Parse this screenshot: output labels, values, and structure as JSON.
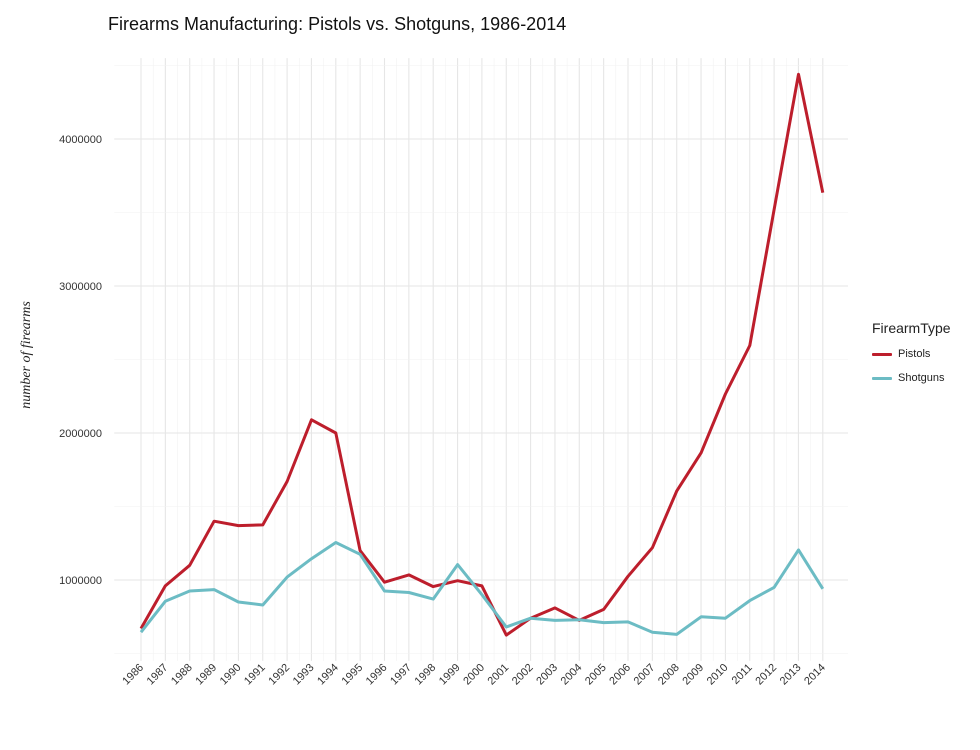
{
  "chart_data": {
    "type": "line",
    "title": "Firearms Manufacturing: Pistols vs. Shotguns, 1986-2014",
    "xlabel": "",
    "ylabel": "number of firearms",
    "x": [
      1986,
      1987,
      1988,
      1989,
      1990,
      1991,
      1992,
      1993,
      1994,
      1995,
      1996,
      1997,
      1998,
      1999,
      2000,
      2001,
      2002,
      2003,
      2004,
      2005,
      2006,
      2007,
      2008,
      2009,
      2010,
      2011,
      2012,
      2013,
      2014
    ],
    "ylim": [
      450000,
      4550000
    ],
    "y_ticks": [
      1000000,
      2000000,
      3000000,
      4000000
    ],
    "y_tick_labels": [
      "1000000",
      "2000000",
      "3000000",
      "4000000"
    ],
    "grid": true,
    "legend": {
      "title": "FirearmType",
      "position": "right"
    },
    "series": [
      {
        "name": "Pistols",
        "color": "#BD1E2C",
        "values": [
          670000,
          960000,
          1100000,
          1400000,
          1370000,
          1375000,
          1670000,
          2090000,
          2000000,
          1200000,
          985000,
          1035000,
          955000,
          995000,
          960000,
          625000,
          740000,
          810000,
          725000,
          800000,
          1025000,
          1220000,
          1605000,
          1865000,
          2265000,
          2595000,
          3520000,
          4440000,
          3635000
        ]
      },
      {
        "name": "Shotguns",
        "color": "#6CBCC4",
        "values": [
          645000,
          855000,
          925000,
          935000,
          850000,
          830000,
          1020000,
          1145000,
          1255000,
          1175000,
          925000,
          915000,
          870000,
          1105000,
          900000,
          680000,
          740000,
          725000,
          730000,
          710000,
          715000,
          645000,
          630000,
          750000,
          740000,
          860000,
          950000,
          1205000,
          940000
        ]
      }
    ]
  }
}
